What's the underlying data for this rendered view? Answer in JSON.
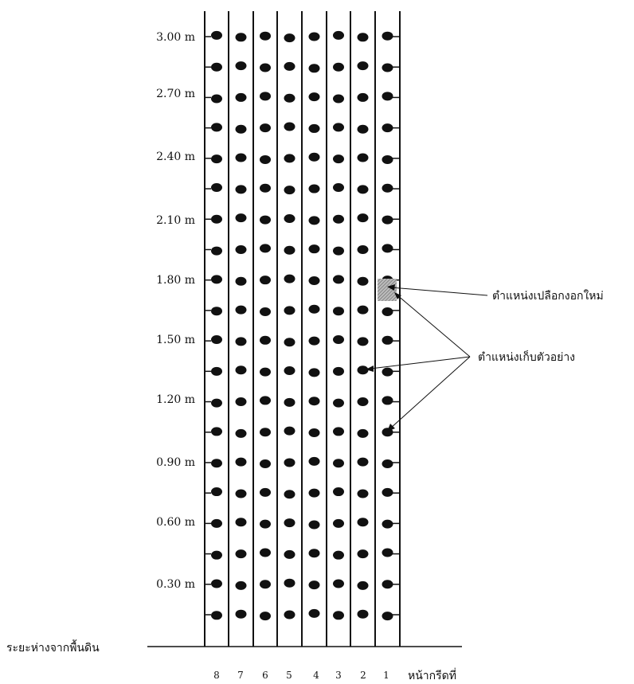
{
  "height_labels": [
    "3.00 m",
    "2.70 m",
    "2.40 m",
    "2.10 m",
    "1.80 m",
    "1.50 m",
    "1.20 m",
    "0.90 m",
    "0.60 m",
    "0.30 m"
  ],
  "ground_label": "ระยะห่างจากพื้นดิน",
  "face_numbers": [
    "8",
    "7",
    "6",
    "5",
    "4",
    "3",
    "2",
    "1"
  ],
  "face_axis_label": "หน้ากรีดที่",
  "annotations": {
    "new_bark": "ตำแหน่งเปลือกงอกใหม่",
    "sample_position": "ตำแหน่งเก็บตัวอย่าง"
  },
  "grid": {
    "columns": 8,
    "rows": 20
  },
  "colors": {
    "ink": "#111111",
    "hatch": "#555555"
  }
}
